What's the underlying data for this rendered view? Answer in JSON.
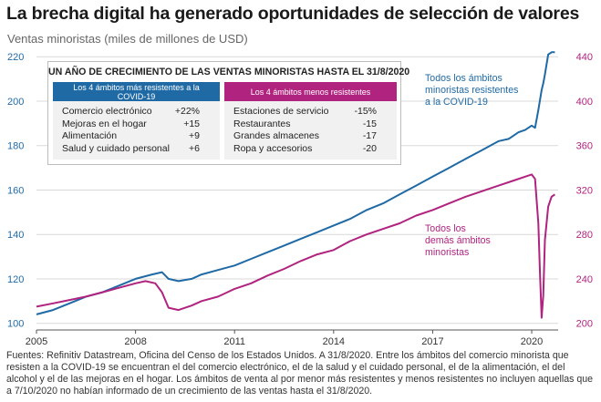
{
  "title": "La brecha digital ha generado oportunidades de selección de valores",
  "subtitle": "Ventas minoristas (miles de millones de USD)",
  "infobox": {
    "title": "UN AÑO DE CRECIMIENTO DE LAS VENTAS MINORISTAS HASTA EL 31/8/2020",
    "left_header": "Los 4 ámbitos más resistentes a la COVID-19",
    "right_header": "Los 4 ámbitos menos resistentes",
    "left_rows": [
      {
        "label": "Comercio electrónico",
        "value": "+22%"
      },
      {
        "label": "Mejoras en el hogar",
        "value": "+15"
      },
      {
        "label": "Alimentación",
        "value": "+9"
      },
      {
        "label": "Salud y cuidado personal",
        "value": "+6"
      }
    ],
    "right_rows": [
      {
        "label": "Estaciones de servicio",
        "value": "-15%"
      },
      {
        "label": "Restaurantes",
        "value": "-15"
      },
      {
        "label": "Grandes almacenes",
        "value": "-17"
      },
      {
        "label": "Ropa y accesorios",
        "value": "-20"
      }
    ]
  },
  "annotations": {
    "blue": [
      "Todos los ámbitos",
      "minoristas resistentes",
      "a la COVID-19"
    ],
    "magenta": [
      "Todos los",
      "demás ámbitos",
      "minoristas"
    ]
  },
  "footer": "Fuentes: Refinitiv Datastream, Oficina del Censo de los Estados Unidos. A 31/8/2020. Entre los ámbitos del comercio minorista que resisten a la COVID-19 se encuentran el del comercio electrónico, el de la salud y el cuidado personal, el de la alimentación, el del alcohol y el de las mejoras en el hogar. Los ámbitos de venta al por menor más resistentes y menos resistentes no incluyen aquellas que a 7/10/2020 no habían informado de un crecimiento de las ventas hasta el 31/8/2020.",
  "colors": {
    "blue": "#1f6aa5",
    "magenta": "#b0237f",
    "grid": "#d9d9d9"
  },
  "chart_data": {
    "type": "line",
    "title": "La brecha digital ha generado oportunidades de selección de valores",
    "ylabel": "Ventas minoristas (miles de millones de USD)",
    "x_ticks": [
      "2005",
      "2008",
      "2011",
      "2014",
      "2017",
      "2020"
    ],
    "x_range": [
      2005.0,
      2020.8
    ],
    "y_left": {
      "range": [
        97,
        225
      ],
      "ticks": [
        "100",
        "120",
        "140",
        "160",
        "180",
        "200",
        "220"
      ]
    },
    "y_right": {
      "range": [
        194,
        450
      ],
      "ticks": [
        "200",
        "240",
        "280",
        "320",
        "360",
        "400",
        "440"
      ]
    },
    "series": [
      {
        "name": "Todos los ámbitos minoristas resistentes a la COVID-19",
        "axis": "left",
        "color": "#1f6aa5",
        "points": [
          [
            2005.0,
            104
          ],
          [
            2005.5,
            106
          ],
          [
            2006.0,
            109
          ],
          [
            2006.5,
            112
          ],
          [
            2007.0,
            114
          ],
          [
            2007.5,
            117
          ],
          [
            2008.0,
            120
          ],
          [
            2008.5,
            122
          ],
          [
            2008.8,
            123
          ],
          [
            2009.0,
            120
          ],
          [
            2009.3,
            119
          ],
          [
            2009.7,
            120
          ],
          [
            2010.0,
            122
          ],
          [
            2010.5,
            124
          ],
          [
            2011.0,
            126
          ],
          [
            2011.5,
            129
          ],
          [
            2012.0,
            132
          ],
          [
            2012.5,
            135
          ],
          [
            2013.0,
            138
          ],
          [
            2013.5,
            141
          ],
          [
            2014.0,
            144
          ],
          [
            2014.5,
            147
          ],
          [
            2015.0,
            151
          ],
          [
            2015.5,
            154
          ],
          [
            2016.0,
            158
          ],
          [
            2016.5,
            162
          ],
          [
            2017.0,
            166
          ],
          [
            2017.5,
            170
          ],
          [
            2018.0,
            174
          ],
          [
            2018.5,
            178
          ],
          [
            2019.0,
            182
          ],
          [
            2019.3,
            183
          ],
          [
            2019.6,
            186
          ],
          [
            2019.8,
            187
          ],
          [
            2020.0,
            189
          ],
          [
            2020.1,
            188
          ],
          [
            2020.2,
            196
          ],
          [
            2020.3,
            205
          ],
          [
            2020.35,
            208
          ],
          [
            2020.4,
            212
          ],
          [
            2020.5,
            221
          ],
          [
            2020.6,
            222
          ],
          [
            2020.7,
            222
          ]
        ]
      },
      {
        "name": "Todos los demás ámbitos minoristas",
        "axis": "right",
        "color": "#b0237f",
        "points": [
          [
            2005.0,
            215
          ],
          [
            2005.5,
            218
          ],
          [
            2006.0,
            221
          ],
          [
            2006.5,
            224
          ],
          [
            2007.0,
            228
          ],
          [
            2007.5,
            232
          ],
          [
            2008.0,
            236
          ],
          [
            2008.3,
            238
          ],
          [
            2008.6,
            236
          ],
          [
            2008.8,
            228
          ],
          [
            2009.0,
            214
          ],
          [
            2009.3,
            212
          ],
          [
            2009.7,
            216
          ],
          [
            2010.0,
            220
          ],
          [
            2010.5,
            224
          ],
          [
            2011.0,
            231
          ],
          [
            2011.5,
            236
          ],
          [
            2012.0,
            243
          ],
          [
            2012.5,
            249
          ],
          [
            2013.0,
            256
          ],
          [
            2013.5,
            262
          ],
          [
            2014.0,
            266
          ],
          [
            2014.5,
            274
          ],
          [
            2015.0,
            280
          ],
          [
            2015.5,
            285
          ],
          [
            2016.0,
            290
          ],
          [
            2016.5,
            297
          ],
          [
            2017.0,
            302
          ],
          [
            2017.5,
            308
          ],
          [
            2018.0,
            314
          ],
          [
            2018.5,
            319
          ],
          [
            2019.0,
            324
          ],
          [
            2019.5,
            329
          ],
          [
            2019.8,
            332
          ],
          [
            2020.0,
            334
          ],
          [
            2020.1,
            330
          ],
          [
            2020.2,
            290
          ],
          [
            2020.25,
            245
          ],
          [
            2020.3,
            205
          ],
          [
            2020.35,
            225
          ],
          [
            2020.4,
            275
          ],
          [
            2020.5,
            305
          ],
          [
            2020.6,
            314
          ],
          [
            2020.7,
            316
          ]
        ]
      }
    ]
  }
}
